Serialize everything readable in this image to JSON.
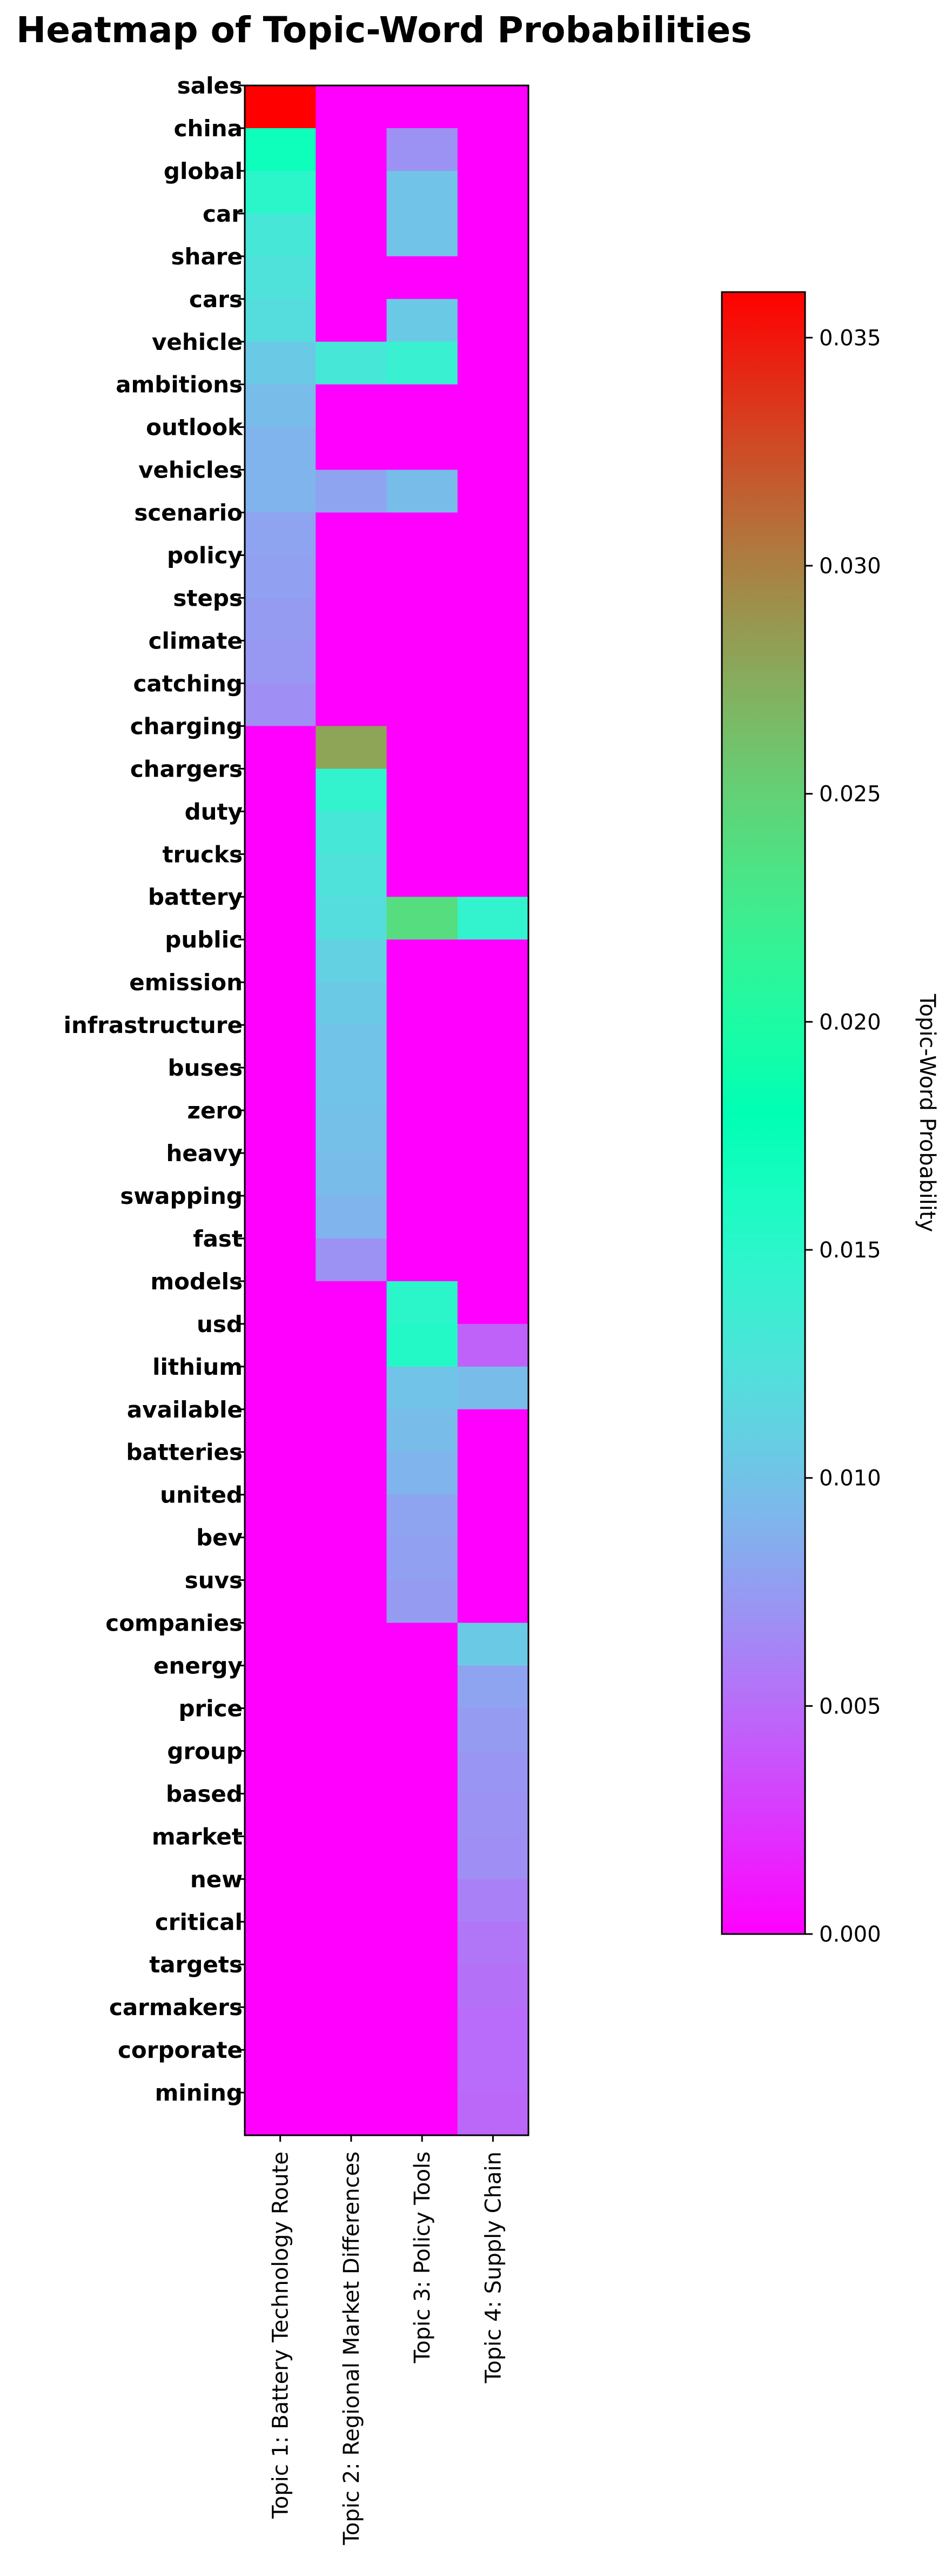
{
  "chart_data": {
    "type": "heatmap",
    "title": "Heatmap of Topic-Word Probabilities",
    "columns": [
      "Topic 1: Battery Technology Route",
      "Topic 2: Regional Market Differences",
      "Topic 3: Policy Tools",
      "Topic 4: Supply Chain"
    ],
    "rows": [
      "sales",
      "china",
      "global",
      "car",
      "share",
      "cars",
      "vehicle",
      "ambitions",
      "outlook",
      "vehicles",
      "scenario",
      "policy",
      "steps",
      "climate",
      "catching",
      "charging",
      "chargers",
      "duty",
      "trucks",
      "battery",
      "public",
      "emission",
      "infrastructure",
      "buses",
      "zero",
      "heavy",
      "swapping",
      "fast",
      "models",
      "usd",
      "lithium",
      "available",
      "batteries",
      "united",
      "bev",
      "suvs",
      "companies",
      "energy",
      "price",
      "group",
      "based",
      "market",
      "new",
      "critical",
      "targets",
      "carmakers",
      "corporate",
      "mining"
    ],
    "values": [
      [
        0.036,
        0,
        0,
        0
      ],
      [
        0.017,
        0,
        0.007,
        0
      ],
      [
        0.015,
        0,
        0.01,
        0
      ],
      [
        0.013,
        0,
        0.01,
        0
      ],
      [
        0.0125,
        0,
        0,
        0
      ],
      [
        0.012,
        0,
        0.0105,
        0
      ],
      [
        0.0105,
        0.013,
        0.014,
        0
      ],
      [
        0.0095,
        0,
        0,
        0
      ],
      [
        0.009,
        0,
        0,
        0
      ],
      [
        0.009,
        0.008,
        0.0095,
        0
      ],
      [
        0.008,
        0,
        0,
        0
      ],
      [
        0.0078,
        0,
        0,
        0
      ],
      [
        0.0075,
        0,
        0,
        0
      ],
      [
        0.0073,
        0,
        0,
        0
      ],
      [
        0.0068,
        0,
        0,
        0
      ],
      [
        0,
        0.028,
        0,
        0
      ],
      [
        0,
        0.0145,
        0,
        0
      ],
      [
        0,
        0.013,
        0,
        0
      ],
      [
        0,
        0.0125,
        0,
        0
      ],
      [
        0,
        0.012,
        0.024,
        0.0145
      ],
      [
        0,
        0.011,
        0,
        0
      ],
      [
        0,
        0.0105,
        0,
        0
      ],
      [
        0,
        0.01,
        0,
        0
      ],
      [
        0,
        0.01,
        0,
        0
      ],
      [
        0,
        0.0098,
        0,
        0
      ],
      [
        0,
        0.0095,
        0,
        0
      ],
      [
        0,
        0.009,
        0,
        0
      ],
      [
        0,
        0.007,
        0,
        0
      ],
      [
        0,
        0,
        0.015,
        0
      ],
      [
        0,
        0,
        0.0155,
        0.0045
      ],
      [
        0,
        0,
        0.01,
        0.0095
      ],
      [
        0,
        0,
        0.0095,
        0
      ],
      [
        0,
        0,
        0.009,
        0
      ],
      [
        0,
        0,
        0.008,
        0
      ],
      [
        0,
        0,
        0.0078,
        0
      ],
      [
        0,
        0,
        0.0075,
        0
      ],
      [
        0,
        0,
        0,
        0.0105
      ],
      [
        0,
        0,
        0,
        0.008
      ],
      [
        0,
        0,
        0,
        0.0075
      ],
      [
        0,
        0,
        0,
        0.0072
      ],
      [
        0,
        0,
        0,
        0.007
      ],
      [
        0,
        0,
        0,
        0.0068
      ],
      [
        0,
        0,
        0,
        0.006
      ],
      [
        0,
        0,
        0,
        0.0055
      ],
      [
        0,
        0,
        0,
        0.0052
      ],
      [
        0,
        0,
        0,
        0.005
      ],
      [
        0,
        0,
        0,
        0.005
      ],
      [
        0,
        0,
        0,
        0.0048
      ]
    ],
    "colormap": "rainbow",
    "vmin": 0,
    "vmax": 0.036,
    "colorbar": {
      "label": "Topic-Word Probability",
      "ticks": [
        0.0,
        0.005,
        0.01,
        0.015,
        0.02,
        0.025,
        0.03,
        0.035
      ],
      "tick_labels": [
        "0.000",
        "0.005",
        "0.010",
        "0.015",
        "0.020",
        "0.025",
        "0.030",
        "0.035"
      ]
    },
    "grid": false
  }
}
